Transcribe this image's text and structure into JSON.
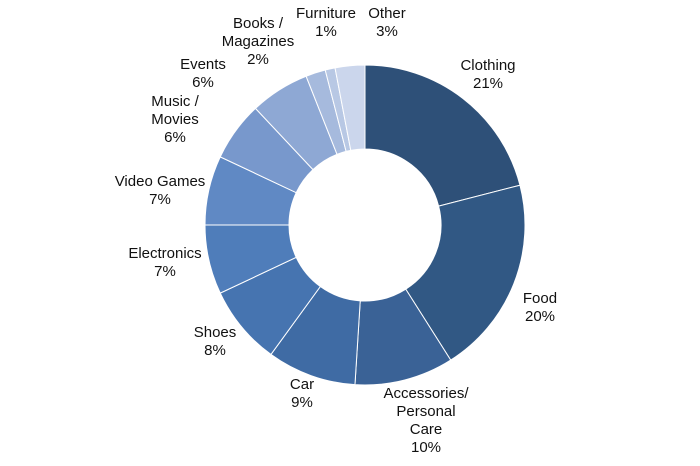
{
  "chart_data": {
    "type": "pie",
    "variant": "donut",
    "title": "",
    "legend": "none",
    "slices": [
      {
        "label_lines": [
          "Clothing"
        ],
        "pct_label": "21%",
        "value": 21,
        "color": "#2e5078"
      },
      {
        "label_lines": [
          "Food"
        ],
        "pct_label": "20%",
        "value": 20,
        "color": "#315884"
      },
      {
        "label_lines": [
          "Accessories/",
          "Personal",
          "Care"
        ],
        "pct_label": "10%",
        "value": 10,
        "color": "#3a6296"
      },
      {
        "label_lines": [
          "Car"
        ],
        "pct_label": "9%",
        "value": 9,
        "color": "#3f6ba4"
      },
      {
        "label_lines": [
          "Shoes"
        ],
        "pct_label": "8%",
        "value": 8,
        "color": "#4674b0"
      },
      {
        "label_lines": [
          "Electronics"
        ],
        "pct_label": "7%",
        "value": 7,
        "color": "#4f7dba"
      },
      {
        "label_lines": [
          "Video Games"
        ],
        "pct_label": "7%",
        "value": 7,
        "color": "#6089c4"
      },
      {
        "label_lines": [
          "Music /",
          "Movies"
        ],
        "pct_label": "6%",
        "value": 6,
        "color": "#7898cc"
      },
      {
        "label_lines": [
          "Events"
        ],
        "pct_label": "6%",
        "value": 6,
        "color": "#8ea8d4"
      },
      {
        "label_lines": [
          "Books /",
          "Magazines"
        ],
        "pct_label": "2%",
        "value": 2,
        "color": "#a6badd"
      },
      {
        "label_lines": [
          "Furniture"
        ],
        "pct_label": "1%",
        "value": 1,
        "color": "#b8c8e4"
      },
      {
        "label_lines": [
          "Other"
        ],
        "pct_label": "3%",
        "value": 3,
        "color": "#cbd6ec"
      }
    ]
  }
}
